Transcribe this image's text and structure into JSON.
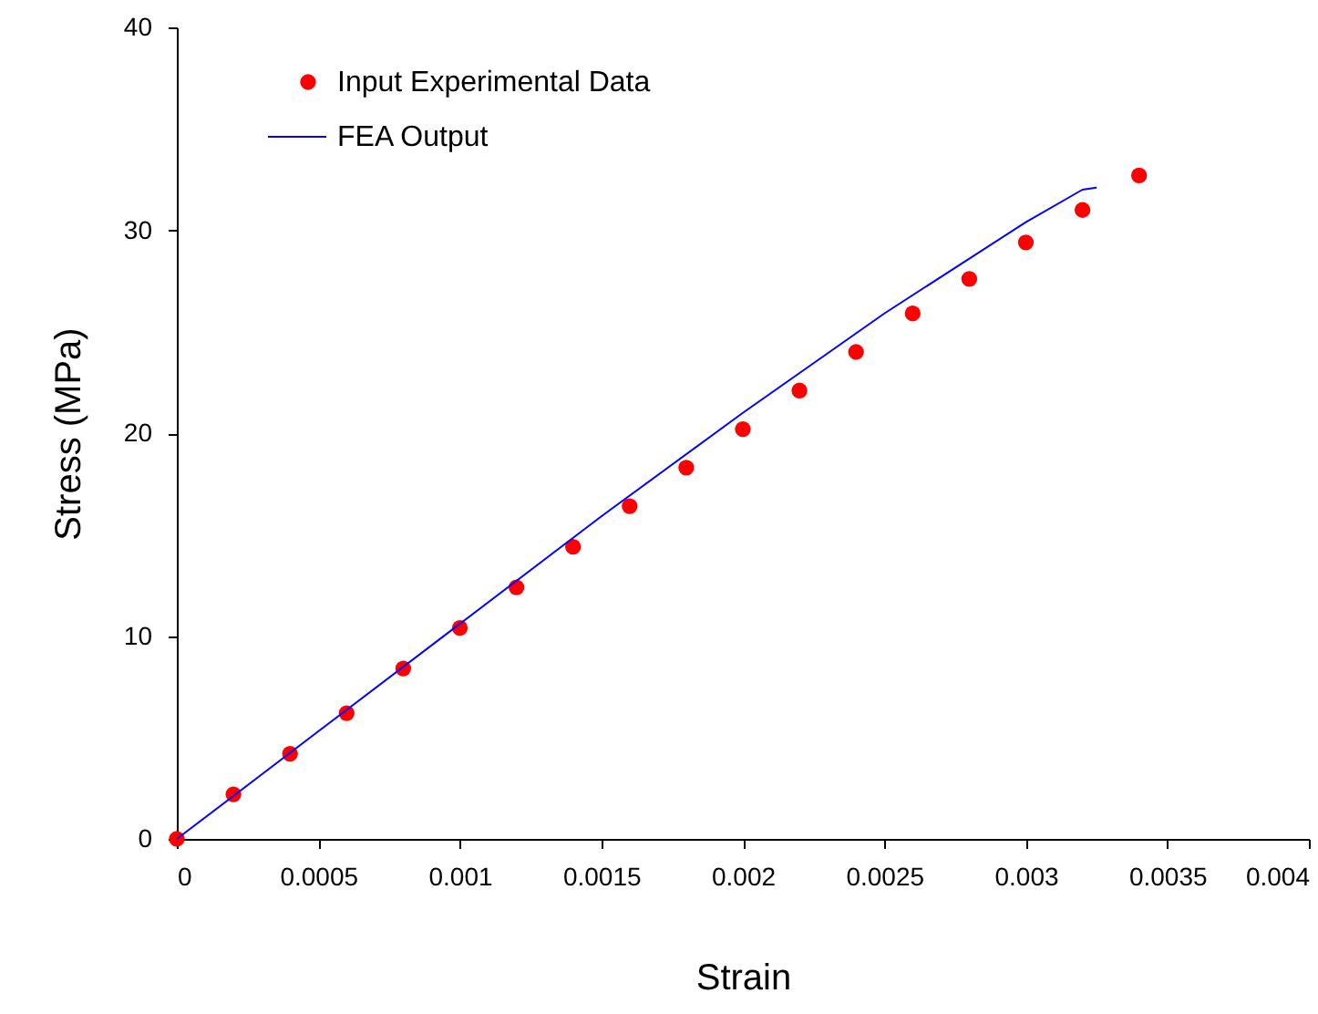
{
  "chart_data": {
    "type": "scatter",
    "xlabel": "Strain",
    "ylabel": "Stress (MPa)",
    "xlim": [
      0,
      0.004
    ],
    "ylim": [
      0,
      40
    ],
    "xticks": [
      0,
      0.0005,
      0.001,
      0.0015,
      0.002,
      0.0025,
      0.003,
      0.0035,
      0.004
    ],
    "yticks": [
      0,
      10,
      20,
      30,
      40
    ],
    "grid": false,
    "legend": "top left",
    "series": [
      {
        "name": "Input Experimental Data",
        "type": "scatter",
        "marker": "circle",
        "color": "#ff0000",
        "x": [
          0,
          0.0002,
          0.0004,
          0.0006,
          0.0008,
          0.001,
          0.0012,
          0.0014,
          0.0016,
          0.0018,
          0.002,
          0.0022,
          0.0024,
          0.0026,
          0.0028,
          0.003,
          0.0032,
          0.0034
        ],
        "values": [
          0,
          2.2,
          4.2,
          6.2,
          8.4,
          10.4,
          12.4,
          14.4,
          16.4,
          18.3,
          20.2,
          22.1,
          24.0,
          25.9,
          27.6,
          29.4,
          31.0,
          32.7
        ]
      },
      {
        "name": "FEA Output",
        "type": "line",
        "marker": "none",
        "line_style": "solid",
        "color": "#0000ff",
        "x": [
          0,
          0.0005,
          0.001,
          0.0015,
          0.002,
          0.0025,
          0.003,
          0.0032,
          0.00325
        ],
        "values": [
          0,
          5.3,
          10.6,
          15.9,
          21.0,
          25.9,
          30.4,
          32.0,
          32.1
        ]
      }
    ]
  }
}
